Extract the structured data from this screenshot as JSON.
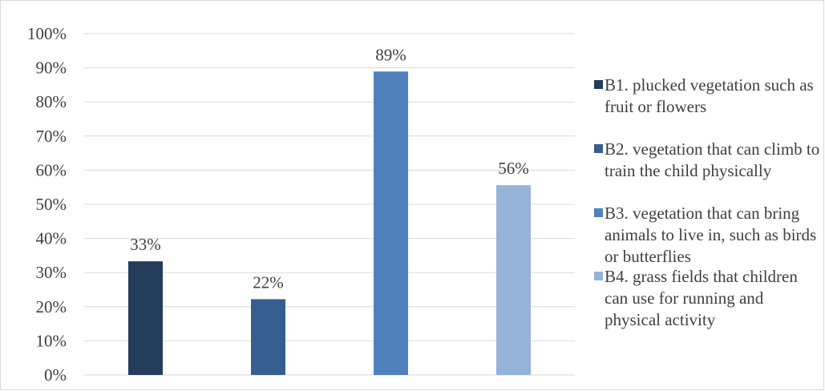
{
  "chart_data": {
    "type": "bar",
    "categories": [
      "B1. plucked vegetation such as fruit or flowers",
      "B2. vegetation that can climb to train the child physically",
      "B3. vegetation that can bring animals to live in, such as birds or butterflies",
      "B4. grass fields that children can use for running and physical activity"
    ],
    "values": [
      33.3,
      22.2,
      88.9,
      55.6
    ],
    "data_labels": [
      "33%",
      "22%",
      "89%",
      "56%"
    ],
    "colors": [
      "#243c5c",
      "#365e8f",
      "#4f81bd",
      "#95b3d7"
    ],
    "ylim": [
      0,
      100
    ],
    "yticks": [
      "0%",
      "10%",
      "20%",
      "30%",
      "40%",
      "50%",
      "60%",
      "70%",
      "80%",
      "90%",
      "100%"
    ],
    "grid": true,
    "legend_position": "right",
    "title": "",
    "xlabel": "",
    "ylabel": ""
  }
}
